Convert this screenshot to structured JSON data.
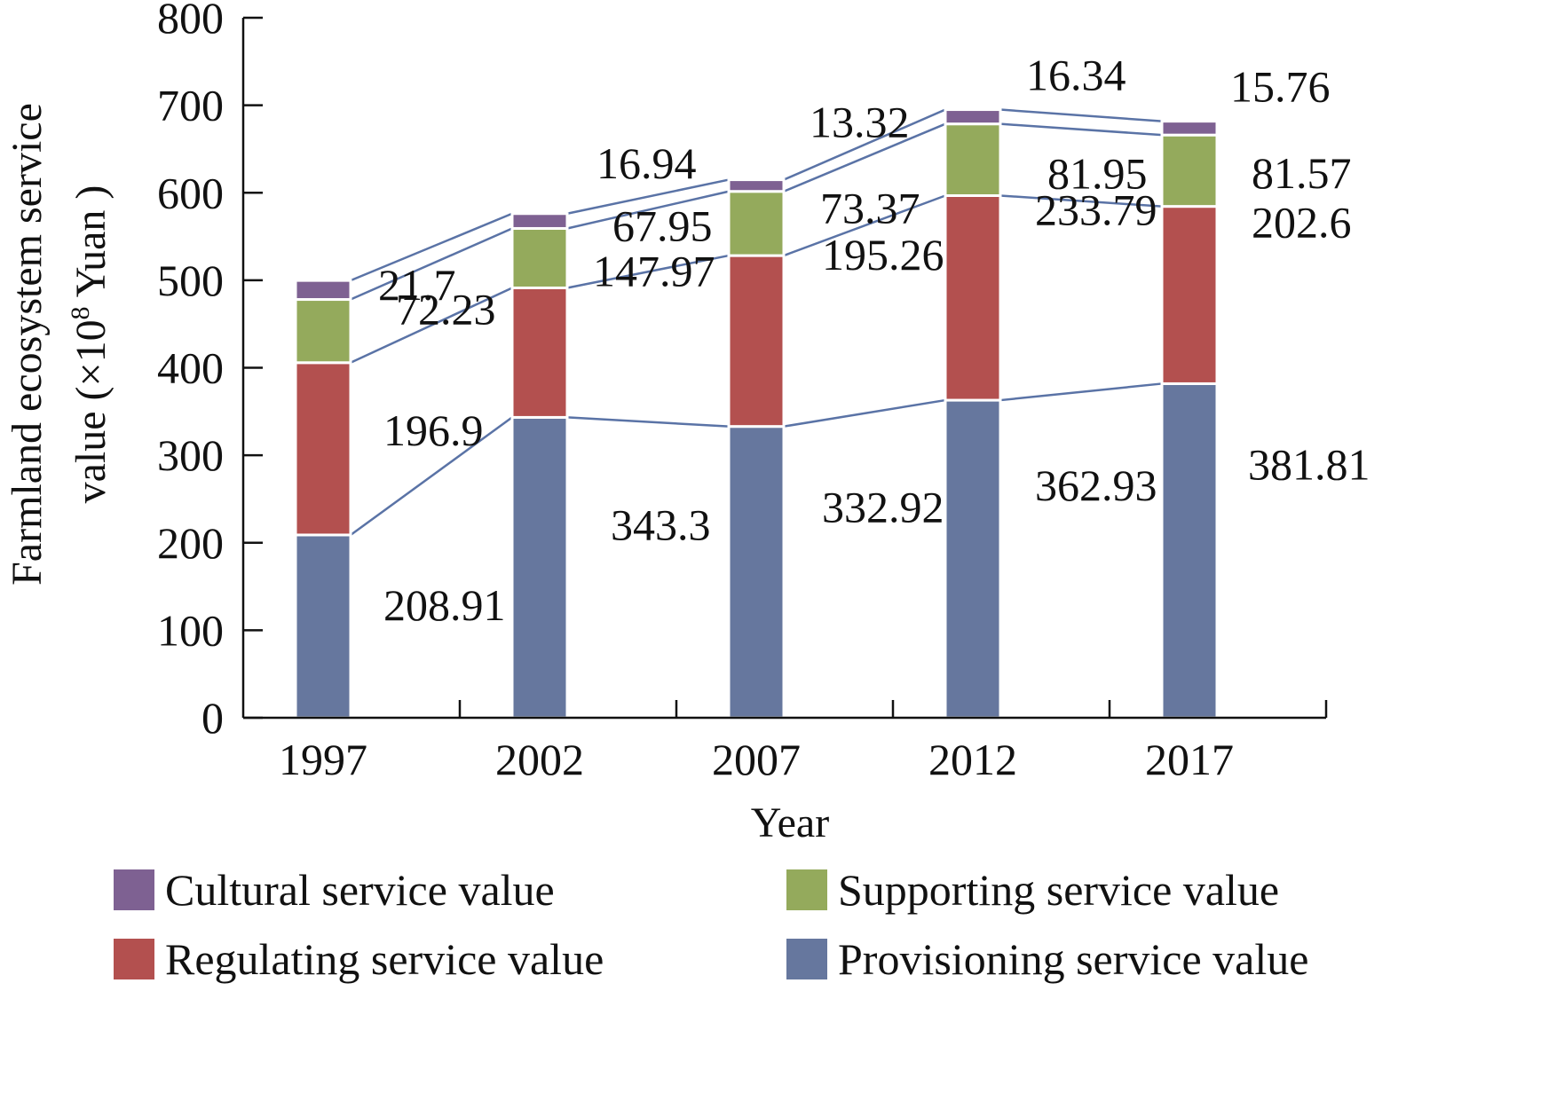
{
  "chart_data": {
    "type": "bar",
    "stacked": true,
    "categories": [
      "1997",
      "2002",
      "2007",
      "2012",
      "2017"
    ],
    "series": [
      {
        "name": "Provisioning service value",
        "color": "#66779e",
        "values": [
          208.91,
          343.3,
          332.92,
          362.93,
          381.81
        ]
      },
      {
        "name": "Regulating service value",
        "color": "#b3504f",
        "values": [
          196.9,
          147.97,
          195.26,
          233.79,
          202.6
        ]
      },
      {
        "name": "Supporting service value",
        "color": "#94aa5c",
        "values": [
          72.23,
          67.95,
          73.37,
          81.95,
          81.57
        ]
      },
      {
        "name": "Cultural service value",
        "color": "#7e6192",
        "values": [
          21.7,
          16.94,
          13.32,
          16.34,
          15.76
        ]
      }
    ],
    "xlabel": "Year",
    "ylabel_line1": "Farmland ecosystem service",
    "ylabel_line2_prefix": "value (×10",
    "ylabel_line2_sup": "8",
    "ylabel_line2_suffix": " Yuan )",
    "ylim": [
      0,
      800
    ],
    "yticks": [
      0,
      100,
      200,
      300,
      400,
      500,
      600,
      700,
      800
    ],
    "grid": false,
    "legend_position": "bottom",
    "legend_order": [
      "Cultural service value",
      "Supporting service value",
      "Regulating service value",
      "Provisioning service value"
    ]
  }
}
